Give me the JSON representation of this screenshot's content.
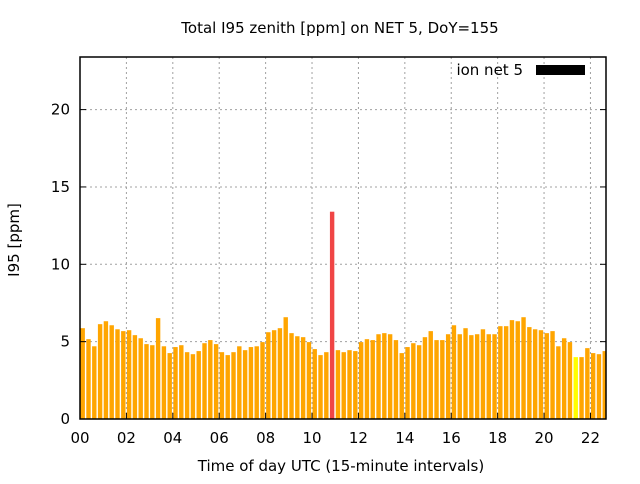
{
  "chart_data": {
    "type": "bar",
    "title": "Total I95 zenith [ppm] on NET 5, DoY=155",
    "xlabel": "Time of day UTC (15-minute intervals)",
    "ylabel": "I95 [ppm]",
    "xlim": [
      0,
      22.67
    ],
    "ylim": [
      0,
      23.4
    ],
    "xticks": [
      0,
      2,
      4,
      6,
      8,
      10,
      12,
      14,
      16,
      18,
      20,
      22
    ],
    "xtick_labels": [
      "00",
      "02",
      "04",
      "06",
      "08",
      "10",
      "12",
      "14",
      "16",
      "18",
      "20",
      "22"
    ],
    "yticks": [
      0,
      5,
      10,
      15,
      20
    ],
    "ytick_labels": [
      "0",
      "5",
      "10",
      "15",
      "20"
    ],
    "grid": true,
    "legend": {
      "label": "ion net 5",
      "placement": "top-right",
      "color": "#000000"
    },
    "bar_interval_hours": 0.25,
    "colors": {
      "normal": "#FFA500",
      "high": "#F04545",
      "low": "#FFFF00"
    },
    "values": [
      5.87,
      5.16,
      4.7,
      6.13,
      6.32,
      6.06,
      5.8,
      5.68,
      5.74,
      5.42,
      5.22,
      4.84,
      4.77,
      6.52,
      4.7,
      4.26,
      4.65,
      4.77,
      4.32,
      4.19,
      4.39,
      4.9,
      5.1,
      4.84,
      4.32,
      4.13,
      4.32,
      4.7,
      4.45,
      4.65,
      4.7,
      4.97,
      5.61,
      5.74,
      5.87,
      6.58,
      5.55,
      5.35,
      5.29,
      4.97,
      4.52,
      4.13,
      4.32,
      13.4,
      4.45,
      4.32,
      4.45,
      4.39,
      4.97,
      5.16,
      5.1,
      5.48,
      5.55,
      5.48,
      5.1,
      4.26,
      4.65,
      4.9,
      4.77,
      5.29,
      5.68,
      5.1,
      5.1,
      5.48,
      6.06,
      5.48,
      5.87,
      5.42,
      5.48,
      5.8,
      5.48,
      5.48,
      6.0,
      6.0,
      6.39,
      6.32,
      6.58,
      5.94,
      5.8,
      5.74,
      5.55,
      5.68,
      4.7,
      5.22,
      4.97,
      4.0,
      4.0,
      4.58,
      4.26,
      4.19,
      4.39,
      4.26
    ],
    "bar_color_class": {
      "43": "high",
      "85": "low"
    }
  }
}
